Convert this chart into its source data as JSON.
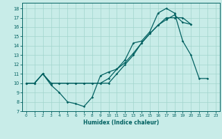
{
  "xlabel": "Humidex (Indice chaleur)",
  "bg_color": "#c8ece8",
  "line_color": "#006060",
  "grid_color": "#a0d4cc",
  "xlim": [
    -0.5,
    23.5
  ],
  "ylim": [
    7,
    18.6
  ],
  "yticks": [
    7,
    8,
    9,
    10,
    11,
    12,
    13,
    14,
    15,
    16,
    17,
    18
  ],
  "xticks": [
    0,
    1,
    2,
    3,
    4,
    5,
    6,
    7,
    8,
    9,
    10,
    11,
    12,
    13,
    14,
    15,
    16,
    17,
    18,
    19,
    20,
    21,
    22,
    23
  ],
  "line1_x": [
    0,
    1,
    2,
    3,
    4,
    5,
    6,
    7,
    8,
    9,
    10,
    11,
    12,
    13,
    14,
    15,
    16,
    17,
    18,
    19,
    20,
    21,
    22
  ],
  "line1_y": [
    10,
    10,
    11,
    9.8,
    9.0,
    8.0,
    7.8,
    7.5,
    8.5,
    10.8,
    11.2,
    11.5,
    12.5,
    14.3,
    14.5,
    15.5,
    17.5,
    18.0,
    17.5,
    14.5,
    13.0,
    10.5,
    10.5
  ],
  "line2_x": [
    0,
    1,
    2,
    3,
    4,
    5,
    6,
    7,
    8,
    9,
    10,
    11,
    12,
    13,
    14,
    15,
    16,
    17,
    18,
    19,
    20
  ],
  "line2_y": [
    10,
    10,
    11,
    10,
    10,
    10,
    10,
    10,
    10,
    10,
    10,
    11,
    12,
    13,
    14.3,
    15.3,
    16.2,
    17.0,
    17.0,
    17.0,
    16.3
  ],
  "line3_x": [
    0,
    1,
    2,
    3,
    4,
    5,
    6,
    7,
    8,
    9,
    10,
    11,
    12,
    13,
    14,
    15,
    16,
    17,
    18,
    19,
    20
  ],
  "line3_y": [
    10,
    10,
    11,
    10,
    10,
    10,
    10,
    10,
    10,
    10,
    10.5,
    11.5,
    12.2,
    13.2,
    14.3,
    15.3,
    16.2,
    16.8,
    17.3,
    16.5,
    16.3
  ]
}
